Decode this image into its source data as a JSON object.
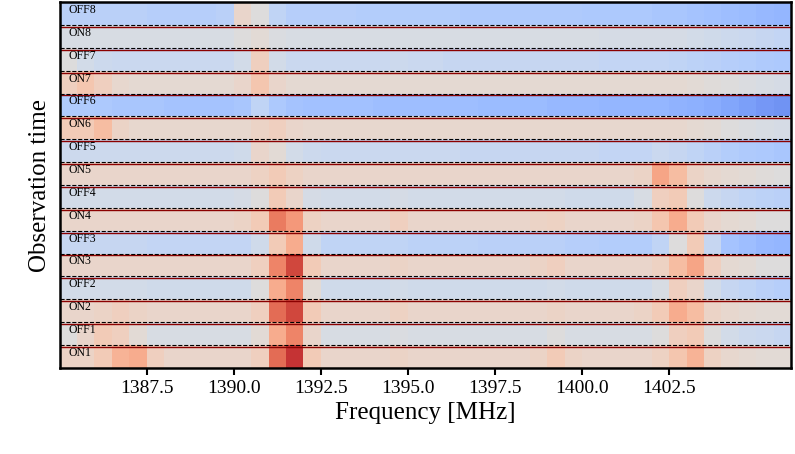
{
  "chart_data": {
    "type": "heatmap",
    "xlabel": "Frequency [MHz]",
    "ylabel": "Observation time",
    "color": "coolwarm",
    "tick_labels": "x",
    "xlim": [
      1385.0,
      1406.0
    ],
    "xticks": [
      1387.5,
      1390.0,
      1392.5,
      1395.0,
      1397.5,
      1400.0,
      1402.5
    ],
    "value_range": [
      0,
      1
    ],
    "x": [
      1385.25,
      1385.75,
      1386.25,
      1386.75,
      1387.25,
      1387.75,
      1388.25,
      1388.75,
      1389.25,
      1389.75,
      1390.25,
      1390.75,
      1391.25,
      1391.75,
      1392.25,
      1392.75,
      1393.25,
      1393.75,
      1394.25,
      1394.75,
      1395.25,
      1395.75,
      1396.25,
      1396.75,
      1397.25,
      1397.75,
      1398.25,
      1398.75,
      1399.25,
      1399.75,
      1400.25,
      1400.75,
      1401.25,
      1401.75,
      1402.25,
      1402.75,
      1403.25,
      1403.75,
      1404.25,
      1404.75,
      1405.25,
      1405.75
    ],
    "rows": [
      "ON1",
      "OFF1",
      "ON2",
      "OFF2",
      "ON3",
      "OFF3",
      "ON4",
      "OFF4",
      "ON5",
      "OFF5",
      "ON6",
      "OFF6",
      "ON7",
      "OFF7",
      "ON8",
      "OFF8"
    ],
    "cells": [
      [
        0.56,
        0.56,
        0.6,
        0.68,
        0.7,
        0.58,
        0.55,
        0.55,
        0.55,
        0.55,
        0.55,
        0.58,
        0.85,
        0.95,
        0.6,
        0.55,
        0.55,
        0.55,
        0.55,
        0.56,
        0.55,
        0.55,
        0.55,
        0.55,
        0.55,
        0.55,
        0.55,
        0.56,
        0.6,
        0.56,
        0.55,
        0.55,
        0.55,
        0.55,
        0.57,
        0.62,
        0.68,
        0.57,
        0.54,
        0.53,
        0.52,
        0.52
      ],
      [
        0.5,
        0.55,
        0.6,
        0.58,
        0.52,
        0.48,
        0.48,
        0.48,
        0.48,
        0.48,
        0.48,
        0.52,
        0.7,
        0.8,
        0.55,
        0.48,
        0.48,
        0.48,
        0.48,
        0.49,
        0.48,
        0.48,
        0.48,
        0.48,
        0.48,
        0.48,
        0.48,
        0.48,
        0.5,
        0.48,
        0.48,
        0.48,
        0.48,
        0.48,
        0.5,
        0.58,
        0.6,
        0.5,
        0.46,
        0.44,
        0.43,
        0.42
      ],
      [
        0.55,
        0.55,
        0.56,
        0.58,
        0.56,
        0.55,
        0.55,
        0.55,
        0.55,
        0.55,
        0.55,
        0.58,
        0.85,
        0.92,
        0.6,
        0.55,
        0.55,
        0.55,
        0.55,
        0.57,
        0.55,
        0.55,
        0.55,
        0.55,
        0.55,
        0.55,
        0.55,
        0.55,
        0.56,
        0.55,
        0.55,
        0.55,
        0.55,
        0.56,
        0.6,
        0.7,
        0.65,
        0.56,
        0.54,
        0.53,
        0.52,
        0.52
      ],
      [
        0.46,
        0.46,
        0.46,
        0.46,
        0.46,
        0.45,
        0.45,
        0.45,
        0.45,
        0.45,
        0.45,
        0.5,
        0.7,
        0.8,
        0.52,
        0.45,
        0.45,
        0.45,
        0.45,
        0.46,
        0.45,
        0.45,
        0.45,
        0.45,
        0.45,
        0.45,
        0.45,
        0.45,
        0.46,
        0.45,
        0.45,
        0.45,
        0.45,
        0.45,
        0.48,
        0.58,
        0.55,
        0.46,
        0.42,
        0.4,
        0.38,
        0.37
      ],
      [
        0.55,
        0.55,
        0.55,
        0.55,
        0.55,
        0.55,
        0.55,
        0.55,
        0.55,
        0.55,
        0.55,
        0.58,
        0.8,
        0.92,
        0.6,
        0.55,
        0.55,
        0.55,
        0.55,
        0.56,
        0.55,
        0.55,
        0.55,
        0.55,
        0.55,
        0.55,
        0.55,
        0.56,
        0.58,
        0.55,
        0.55,
        0.55,
        0.55,
        0.55,
        0.57,
        0.65,
        0.72,
        0.58,
        0.53,
        0.52,
        0.5,
        0.5
      ],
      [
        0.42,
        0.42,
        0.42,
        0.42,
        0.42,
        0.41,
        0.41,
        0.41,
        0.41,
        0.41,
        0.41,
        0.45,
        0.6,
        0.7,
        0.45,
        0.4,
        0.4,
        0.4,
        0.4,
        0.4,
        0.39,
        0.39,
        0.39,
        0.39,
        0.38,
        0.38,
        0.38,
        0.38,
        0.38,
        0.37,
        0.37,
        0.36,
        0.36,
        0.36,
        0.4,
        0.5,
        0.6,
        0.42,
        0.32,
        0.3,
        0.28,
        0.27
      ],
      [
        0.55,
        0.55,
        0.55,
        0.55,
        0.55,
        0.55,
        0.55,
        0.55,
        0.55,
        0.55,
        0.56,
        0.6,
        0.82,
        0.75,
        0.57,
        0.55,
        0.55,
        0.55,
        0.55,
        0.58,
        0.55,
        0.55,
        0.55,
        0.55,
        0.55,
        0.55,
        0.55,
        0.56,
        0.57,
        0.55,
        0.55,
        0.55,
        0.55,
        0.56,
        0.62,
        0.7,
        0.6,
        0.55,
        0.53,
        0.52,
        0.5,
        0.5
      ],
      [
        0.46,
        0.46,
        0.46,
        0.46,
        0.46,
        0.46,
        0.46,
        0.46,
        0.46,
        0.46,
        0.47,
        0.5,
        0.6,
        0.55,
        0.47,
        0.46,
        0.46,
        0.46,
        0.46,
        0.47,
        0.46,
        0.46,
        0.46,
        0.46,
        0.46,
        0.46,
        0.46,
        0.46,
        0.46,
        0.45,
        0.45,
        0.45,
        0.45,
        0.48,
        0.58,
        0.6,
        0.5,
        0.44,
        0.42,
        0.4,
        0.39,
        0.38
      ],
      [
        0.55,
        0.55,
        0.55,
        0.55,
        0.55,
        0.55,
        0.55,
        0.55,
        0.55,
        0.55,
        0.55,
        0.57,
        0.6,
        0.57,
        0.55,
        0.55,
        0.55,
        0.55,
        0.55,
        0.55,
        0.55,
        0.55,
        0.55,
        0.55,
        0.55,
        0.55,
        0.55,
        0.55,
        0.55,
        0.55,
        0.55,
        0.55,
        0.55,
        0.56,
        0.72,
        0.65,
        0.56,
        0.54,
        0.53,
        0.52,
        0.51,
        0.5
      ],
      [
        0.44,
        0.44,
        0.44,
        0.44,
        0.44,
        0.44,
        0.44,
        0.44,
        0.44,
        0.44,
        0.45,
        0.55,
        0.52,
        0.46,
        0.44,
        0.43,
        0.43,
        0.43,
        0.43,
        0.43,
        0.43,
        0.43,
        0.43,
        0.42,
        0.42,
        0.42,
        0.42,
        0.42,
        0.42,
        0.42,
        0.42,
        0.41,
        0.41,
        0.41,
        0.43,
        0.42,
        0.4,
        0.38,
        0.36,
        0.35,
        0.34,
        0.33
      ],
      [
        0.6,
        0.6,
        0.65,
        0.56,
        0.54,
        0.54,
        0.54,
        0.54,
        0.54,
        0.54,
        0.54,
        0.56,
        0.58,
        0.55,
        0.54,
        0.54,
        0.54,
        0.54,
        0.54,
        0.54,
        0.54,
        0.54,
        0.54,
        0.54,
        0.54,
        0.54,
        0.54,
        0.54,
        0.54,
        0.54,
        0.54,
        0.54,
        0.54,
        0.54,
        0.54,
        0.54,
        0.53,
        0.52,
        0.5,
        0.49,
        0.48,
        0.47
      ],
      [
        0.35,
        0.35,
        0.34,
        0.33,
        0.33,
        0.33,
        0.32,
        0.32,
        0.32,
        0.32,
        0.33,
        0.4,
        0.34,
        0.32,
        0.31,
        0.31,
        0.31,
        0.31,
        0.3,
        0.3,
        0.3,
        0.3,
        0.3,
        0.3,
        0.29,
        0.29,
        0.29,
        0.29,
        0.28,
        0.28,
        0.28,
        0.27,
        0.27,
        0.27,
        0.27,
        0.26,
        0.25,
        0.24,
        0.22,
        0.2,
        0.18,
        0.17
      ],
      [
        0.58,
        0.62,
        0.58,
        0.54,
        0.53,
        0.53,
        0.53,
        0.53,
        0.53,
        0.53,
        0.55,
        0.62,
        0.55,
        0.53,
        0.53,
        0.53,
        0.53,
        0.53,
        0.53,
        0.53,
        0.53,
        0.53,
        0.53,
        0.53,
        0.53,
        0.53,
        0.53,
        0.53,
        0.53,
        0.53,
        0.53,
        0.53,
        0.53,
        0.53,
        0.53,
        0.53,
        0.52,
        0.51,
        0.5,
        0.49,
        0.48,
        0.47
      ],
      [
        0.5,
        0.46,
        0.44,
        0.43,
        0.43,
        0.43,
        0.43,
        0.43,
        0.43,
        0.43,
        0.46,
        0.58,
        0.46,
        0.43,
        0.43,
        0.43,
        0.43,
        0.43,
        0.43,
        0.44,
        0.43,
        0.43,
        0.42,
        0.42,
        0.42,
        0.42,
        0.42,
        0.42,
        0.42,
        0.42,
        0.42,
        0.41,
        0.41,
        0.41,
        0.41,
        0.4,
        0.39,
        0.38,
        0.37,
        0.36,
        0.35,
        0.34
      ],
      [
        0.48,
        0.48,
        0.48,
        0.48,
        0.48,
        0.48,
        0.48,
        0.48,
        0.48,
        0.48,
        0.5,
        0.52,
        0.49,
        0.48,
        0.48,
        0.48,
        0.48,
        0.48,
        0.48,
        0.48,
        0.48,
        0.48,
        0.48,
        0.48,
        0.48,
        0.48,
        0.48,
        0.48,
        0.48,
        0.48,
        0.48,
        0.47,
        0.47,
        0.47,
        0.47,
        0.47,
        0.46,
        0.45,
        0.44,
        0.43,
        0.42,
        0.41
      ],
      [
        0.38,
        0.38,
        0.38,
        0.38,
        0.38,
        0.37,
        0.37,
        0.37,
        0.37,
        0.38,
        0.55,
        0.5,
        0.4,
        0.37,
        0.37,
        0.37,
        0.37,
        0.36,
        0.36,
        0.36,
        0.36,
        0.36,
        0.36,
        0.35,
        0.35,
        0.35,
        0.35,
        0.35,
        0.35,
        0.35,
        0.34,
        0.34,
        0.34,
        0.34,
        0.33,
        0.33,
        0.32,
        0.31,
        0.3,
        0.29,
        0.28,
        0.27
      ]
    ]
  }
}
